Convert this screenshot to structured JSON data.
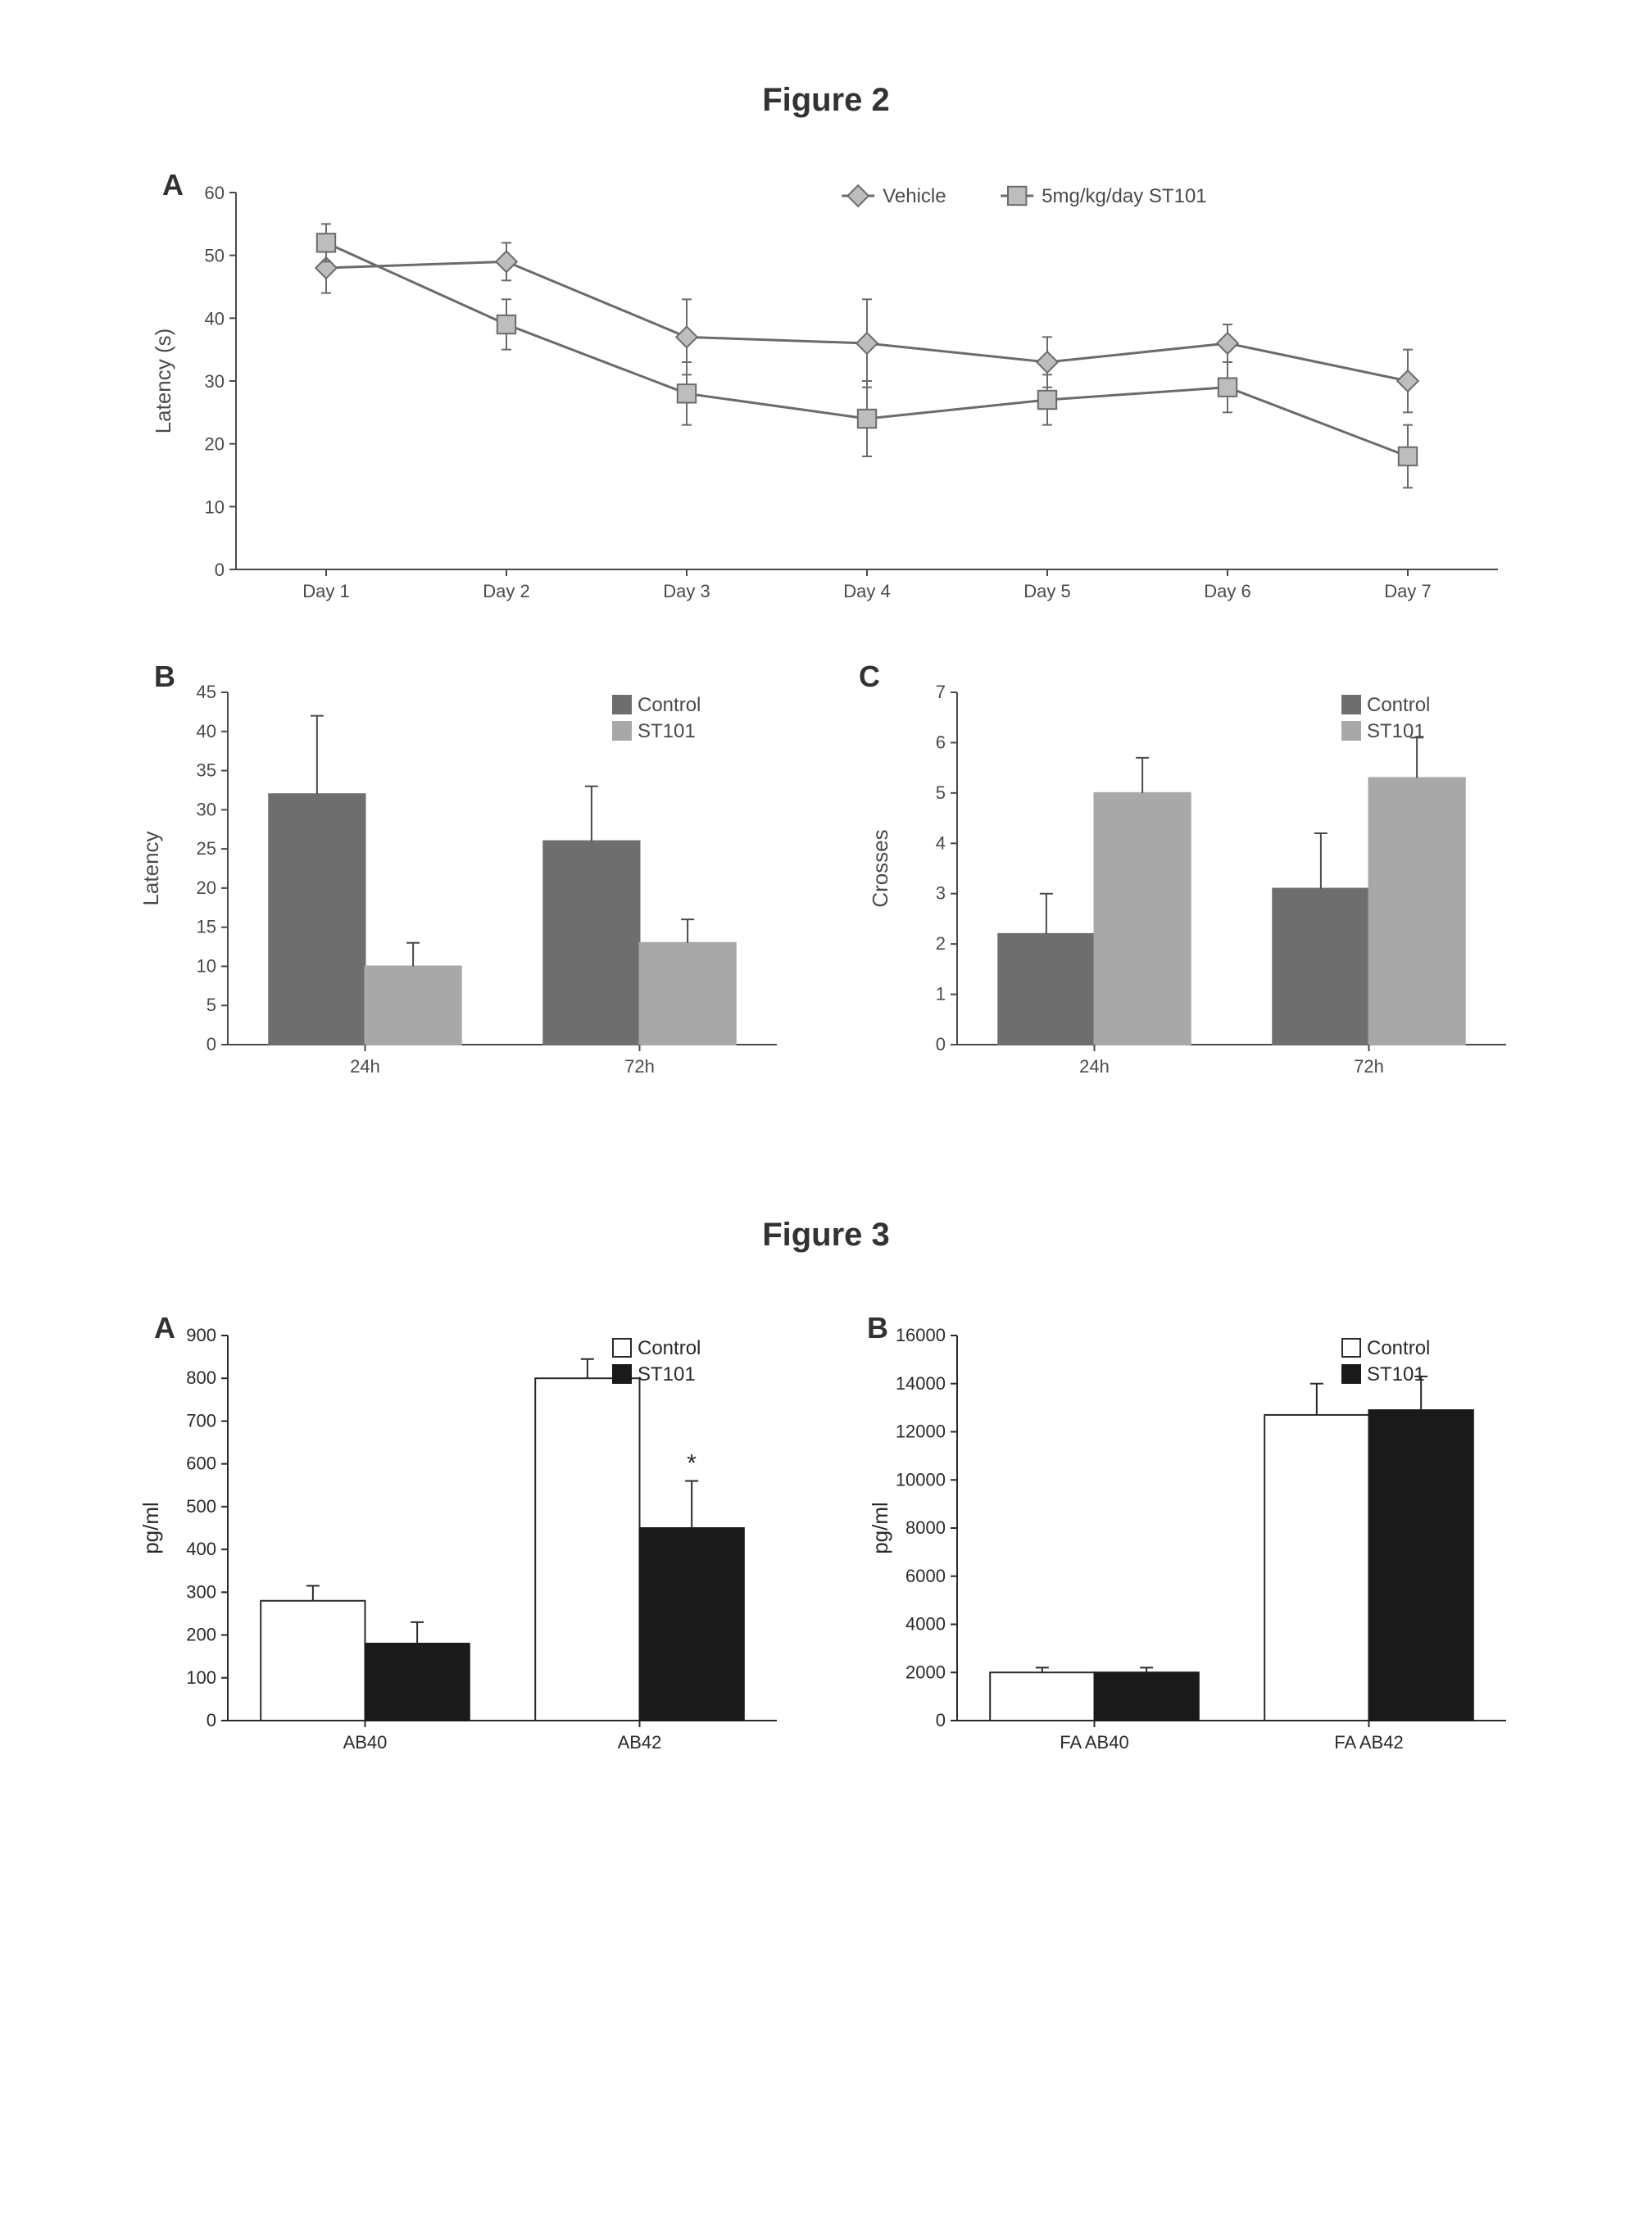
{
  "figure2": {
    "title": "Figure 2",
    "panelA": {
      "label": "A",
      "type": "line",
      "ylabel": "Latency (s)",
      "ylim": [
        0,
        60
      ],
      "ytick_step": 10,
      "categories": [
        "Day 1",
        "Day 2",
        "Day 3",
        "Day 4",
        "Day 5",
        "Day 6",
        "Day 7"
      ],
      "series": [
        {
          "name": "Vehicle",
          "marker": "diamond",
          "color": "#6b6b6b",
          "marker_fill": "#bdbdbd",
          "values": [
            48,
            49,
            37,
            36,
            33,
            36,
            30
          ],
          "err": [
            4,
            3,
            6,
            7,
            4,
            3,
            5
          ]
        },
        {
          "name": "5mg/kg/day ST101",
          "marker": "square",
          "color": "#6b6b6b",
          "marker_fill": "#bdbdbd",
          "values": [
            52,
            39,
            28,
            24,
            27,
            29,
            18
          ],
          "err": [
            3,
            4,
            5,
            6,
            4,
            4,
            5
          ]
        }
      ],
      "axis_color": "#4a4a4a",
      "tick_fontsize": 22,
      "label_fontsize": 26,
      "legend_fontsize": 24,
      "marker_size": 16,
      "line_width": 3,
      "background_color": "#ffffff"
    },
    "panelB": {
      "label": "B",
      "type": "bar",
      "ylabel": "Latency",
      "ylim": [
        0,
        45
      ],
      "ytick_step": 5,
      "categories": [
        "24h",
        "72h"
      ],
      "series": [
        {
          "name": "Control",
          "color": "#6e6e6e",
          "values": [
            32,
            26
          ],
          "err": [
            10,
            7
          ]
        },
        {
          "name": "ST101",
          "color": "#a8a8a8",
          "values": [
            10,
            13
          ],
          "err": [
            3,
            3
          ]
        }
      ],
      "bar_width": 0.35,
      "axis_color": "#4a4a4a",
      "tick_fontsize": 22,
      "label_fontsize": 26,
      "legend_fontsize": 24,
      "background_color": "#ffffff"
    },
    "panelC": {
      "label": "C",
      "type": "bar",
      "ylabel": "Crosses",
      "ylim": [
        0,
        7
      ],
      "ytick_step": 1,
      "categories": [
        "24h",
        "72h"
      ],
      "series": [
        {
          "name": "Control",
          "color": "#6e6e6e",
          "values": [
            2.2,
            3.1
          ],
          "err": [
            0.8,
            1.1
          ]
        },
        {
          "name": "ST101",
          "color": "#a8a8a8",
          "values": [
            5.0,
            5.3
          ],
          "err": [
            0.7,
            0.8
          ]
        }
      ],
      "bar_width": 0.35,
      "axis_color": "#4a4a4a",
      "tick_fontsize": 22,
      "label_fontsize": 26,
      "legend_fontsize": 24,
      "background_color": "#ffffff"
    }
  },
  "figure3": {
    "title": "Figure 3",
    "panelA": {
      "label": "A",
      "type": "bar",
      "ylabel": "pg/ml",
      "ylim": [
        0,
        900
      ],
      "ytick_step": 100,
      "categories": [
        "AB40",
        "AB42"
      ],
      "series": [
        {
          "name": "Control",
          "color": "#ffffff",
          "stroke": "#2a2a2a",
          "values": [
            280,
            800
          ],
          "err": [
            35,
            45
          ]
        },
        {
          "name": "ST101",
          "color": "#1a1a1a",
          "stroke": "#1a1a1a",
          "values": [
            180,
            450
          ],
          "err": [
            50,
            110
          ]
        }
      ],
      "annotations": [
        {
          "category": "AB42",
          "series": "ST101",
          "symbol": "*"
        }
      ],
      "bar_width": 0.38,
      "axis_color": "#2a2a2a",
      "tick_fontsize": 22,
      "label_fontsize": 26,
      "legend_fontsize": 24,
      "background_color": "#ffffff"
    },
    "panelB": {
      "label": "B",
      "type": "bar",
      "ylabel": "pg/ml",
      "ylim": [
        0,
        16000
      ],
      "ytick_step": 2000,
      "categories": [
        "FA AB40",
        "FA AB42"
      ],
      "series": [
        {
          "name": "Control",
          "color": "#ffffff",
          "stroke": "#2a2a2a",
          "values": [
            2000,
            12700
          ],
          "err": [
            200,
            1300
          ]
        },
        {
          "name": "ST101",
          "color": "#1a1a1a",
          "stroke": "#1a1a1a",
          "values": [
            2000,
            12900
          ],
          "err": [
            200,
            1400
          ]
        }
      ],
      "bar_width": 0.38,
      "axis_color": "#2a2a2a",
      "tick_fontsize": 22,
      "label_fontsize": 26,
      "legend_fontsize": 24,
      "background_color": "#ffffff"
    }
  }
}
